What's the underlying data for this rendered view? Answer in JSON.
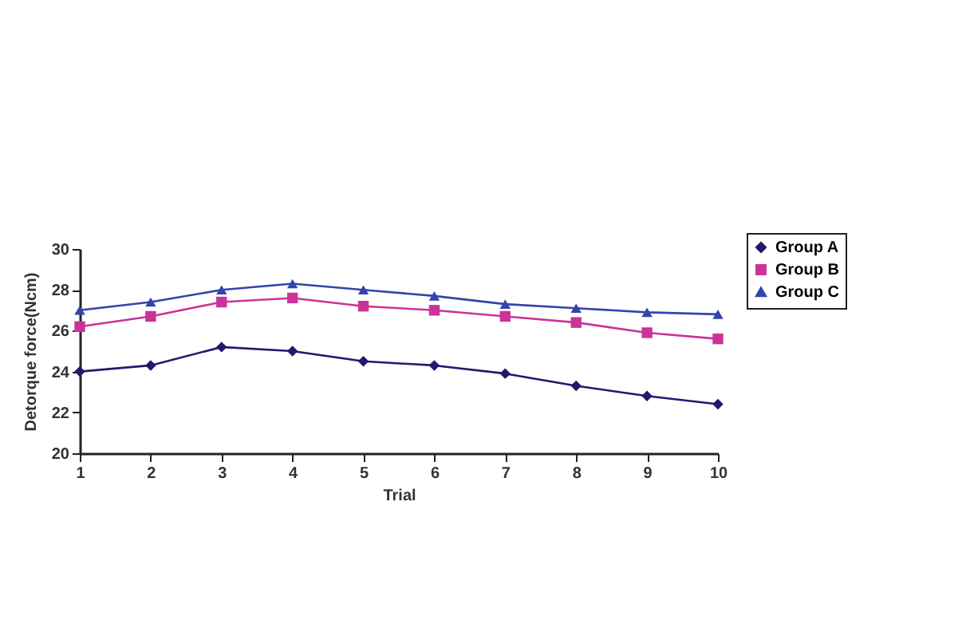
{
  "chart_data": {
    "type": "line",
    "xlabel": "Trial",
    "ylabel": "Detorque force(Ncm)",
    "x": [
      1,
      2,
      3,
      4,
      5,
      6,
      7,
      8,
      9,
      10
    ],
    "series": [
      {
        "name": "Group A",
        "color": "#1f1a6e",
        "marker": "diamond",
        "values": [
          24.0,
          24.3,
          25.2,
          25.0,
          24.5,
          24.3,
          23.9,
          23.3,
          22.8,
          22.4
        ]
      },
      {
        "name": "Group B",
        "color": "#cc3399",
        "marker": "square",
        "values": [
          26.2,
          26.7,
          27.4,
          27.6,
          27.2,
          27.0,
          26.7,
          26.4,
          25.9,
          25.6
        ]
      },
      {
        "name": "Group C",
        "color": "#3344aa",
        "marker": "triangle",
        "values": [
          27.0,
          27.4,
          28.0,
          28.3,
          28.0,
          27.7,
          27.3,
          27.1,
          26.9,
          26.8
        ]
      }
    ],
    "xlim": [
      1,
      10
    ],
    "xticks": [
      1,
      2,
      3,
      4,
      5,
      6,
      7,
      8,
      9,
      10
    ],
    "ylim": [
      20,
      30
    ],
    "yticks": [
      20,
      22,
      24,
      26,
      28,
      30
    ],
    "grid": false,
    "legend": "right",
    "line_style": "solid"
  }
}
